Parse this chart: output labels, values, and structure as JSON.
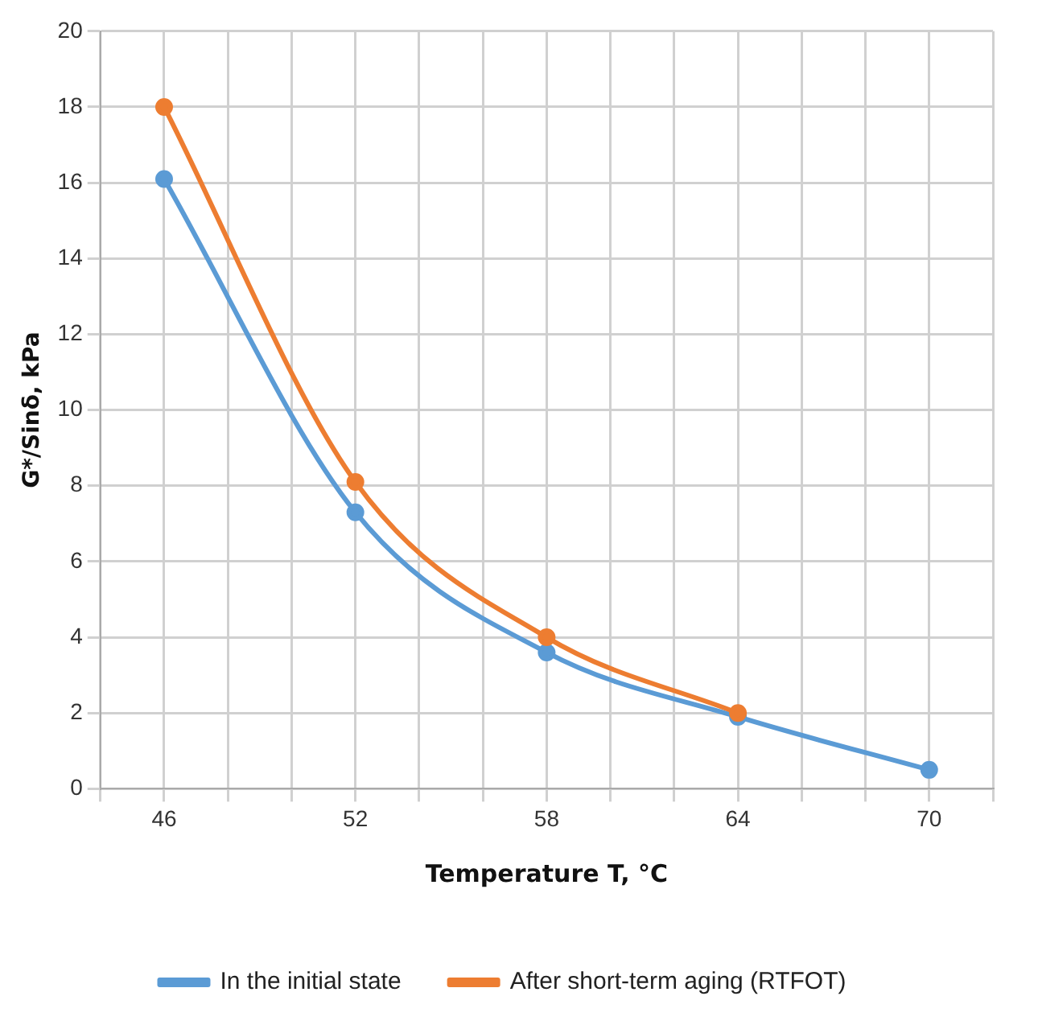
{
  "chart_data": {
    "type": "line",
    "xlabel": "Temperature T, °C",
    "ylabel": "G*/Sinδ, kPa",
    "x": [
      46,
      52,
      58,
      64,
      70
    ],
    "series": [
      {
        "name": "In the initial state",
        "color": "#5b9bd5",
        "values": [
          16.1,
          7.3,
          3.6,
          1.9,
          0.5
        ]
      },
      {
        "name": "After short-term aging (RTFOT)",
        "color": "#ed7d31",
        "values": [
          18.0,
          8.1,
          4.0,
          2.0,
          null
        ]
      }
    ],
    "xlim": [
      44,
      72
    ],
    "xticks": [
      {
        "value": 44,
        "label": null
      },
      46,
      {
        "value": 48,
        "label": null
      },
      {
        "value": 50,
        "label": null
      },
      52,
      {
        "value": 54,
        "label": null
      },
      {
        "value": 56,
        "label": null
      },
      58,
      {
        "value": 60,
        "label": null
      },
      {
        "value": 62,
        "label": null
      },
      64,
      {
        "value": 66,
        "label": null
      },
      {
        "value": 68,
        "label": null
      },
      70,
      {
        "value": 72,
        "label": null
      }
    ],
    "ylim": [
      0,
      20
    ],
    "yticks": [
      0,
      2,
      4,
      6,
      8,
      10,
      12,
      14,
      16,
      18,
      20
    ],
    "grid": true,
    "legend": "bottom",
    "marker": "circle",
    "line_style": "solid"
  }
}
